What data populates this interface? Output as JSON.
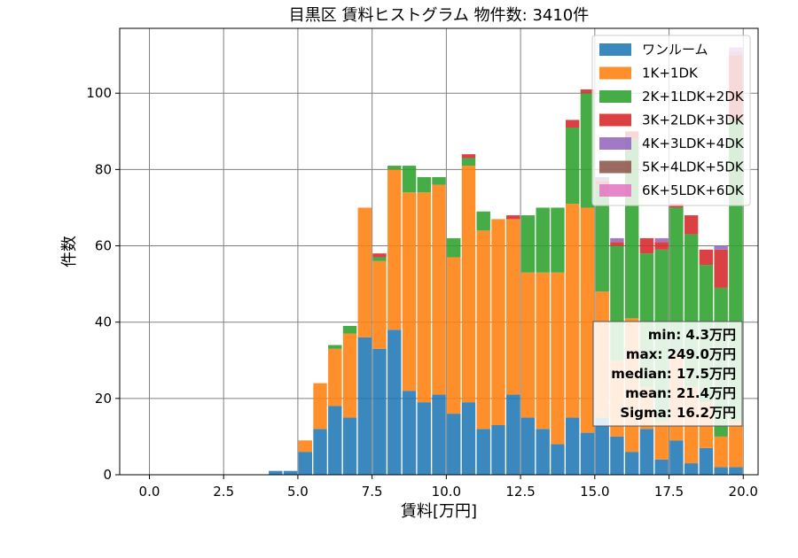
{
  "chart_data": {
    "type": "bar",
    "stacked": true,
    "title": "目黒区 賃料ヒストグラム 物件数: 3410件",
    "xlabel": "賃料[万円]",
    "ylabel": "件数",
    "xlim": [
      -1.0,
      20.5
    ],
    "ylim": [
      0,
      117
    ],
    "xticks": [
      "0.0",
      "2.5",
      "5.0",
      "7.5",
      "10.0",
      "12.5",
      "15.0",
      "17.5",
      "20.0"
    ],
    "xtick_values": [
      0,
      2.5,
      5,
      7.5,
      10,
      12.5,
      15,
      17.5,
      20
    ],
    "yticks": [
      "0",
      "20",
      "40",
      "60",
      "80",
      "100"
    ],
    "ytick_values": [
      0,
      20,
      40,
      60,
      80,
      100
    ],
    "grid": true,
    "legend_position": "top-right",
    "bin_width": 0.5,
    "x": [
      4.0,
      4.5,
      5.0,
      5.5,
      6.0,
      6.5,
      7.0,
      7.5,
      8.0,
      8.5,
      9.0,
      9.5,
      10.0,
      10.5,
      11.0,
      11.5,
      12.0,
      12.5,
      13.0,
      13.5,
      14.0,
      14.5,
      15.0,
      15.5,
      16.0,
      16.5,
      17.0,
      17.5,
      18.0,
      18.5,
      19.0,
      19.5
    ],
    "series": [
      {
        "name": "ワンルーム",
        "color": "#1f77b4",
        "values": [
          1,
          1,
          6,
          12,
          18,
          15,
          36,
          33,
          38,
          22,
          19,
          21,
          16,
          19,
          12,
          13,
          21,
          15,
          12,
          8,
          15,
          11,
          15,
          10,
          6,
          12,
          4,
          9,
          3,
          7,
          2,
          2
        ]
      },
      {
        "name": "1K+1DK",
        "color": "#ff7f0e",
        "values": [
          0,
          0,
          3,
          12,
          15,
          22,
          34,
          23,
          42,
          52,
          55,
          55,
          41,
          62,
          52,
          54,
          46,
          38,
          41,
          45,
          56,
          59,
          33,
          20,
          35,
          11,
          10,
          23,
          20,
          12,
          8,
          12
        ]
      },
      {
        "name": "2K+1LDK+2DK",
        "color": "#2ca02c",
        "values": [
          0,
          0,
          0,
          0,
          1,
          2,
          0,
          1,
          1,
          7,
          4,
          2,
          5,
          2,
          5,
          0,
          0,
          15,
          17,
          17,
          20,
          30,
          28,
          30,
          47,
          35,
          45,
          38,
          40,
          36,
          39,
          79
        ]
      },
      {
        "name": "3K+2LDK+3DK",
        "color": "#d62728",
        "values": [
          0,
          0,
          0,
          0,
          0,
          0,
          0,
          1,
          0,
          0,
          0,
          0,
          0,
          1,
          0,
          0,
          1,
          0,
          0,
          0,
          2,
          1,
          1,
          1,
          2,
          4,
          2,
          1,
          5,
          4,
          10,
          17
        ]
      },
      {
        "name": "4K+3LDK+4DK",
        "color": "#9467bd",
        "values": [
          0,
          0,
          0,
          0,
          0,
          0,
          0,
          0,
          0,
          0,
          0,
          0,
          0,
          0,
          0,
          0,
          0,
          0,
          0,
          0,
          0,
          0,
          1,
          1,
          0,
          0,
          1,
          0,
          0,
          0,
          1,
          1
        ]
      },
      {
        "name": "5K+4LDK+5DK",
        "color": "#8c564b",
        "values": [
          0,
          0,
          0,
          0,
          0,
          0,
          0,
          0,
          0,
          0,
          0,
          0,
          0,
          0,
          0,
          0,
          0,
          0,
          0,
          0,
          0,
          0,
          0,
          0,
          0,
          0,
          0,
          0,
          0,
          0,
          0,
          0
        ]
      },
      {
        "name": "6K+5LDK+6DK",
        "color": "#e377c2",
        "values": [
          0,
          0,
          0,
          0,
          0,
          0,
          0,
          0,
          0,
          0,
          0,
          0,
          0,
          0,
          0,
          0,
          0,
          0,
          0,
          0,
          0,
          0,
          0,
          0,
          0,
          0,
          0,
          0,
          0,
          0,
          0,
          1
        ]
      }
    ],
    "stats": [
      "min: 4.3万円",
      "max: 249.0万円",
      "median: 17.5万円",
      "mean: 21.4万円",
      "Sigma: 16.2万円"
    ]
  }
}
